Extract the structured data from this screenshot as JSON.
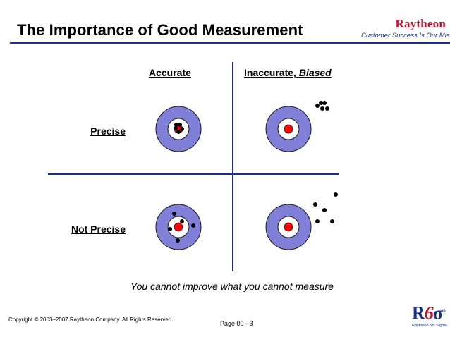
{
  "slide": {
    "title": "The Importance of Good Measurement"
  },
  "brand": {
    "name": "Raytheon",
    "tagline": "Customer Success Is Our Mission"
  },
  "quadrants": {
    "columns": {
      "accurate": "Accurate",
      "inaccurate": "Inaccurate, ",
      "inaccurate_emphasis": "Biased"
    },
    "rows": {
      "precise": "Precise",
      "not_precise": "Not Precise"
    }
  },
  "caption": "You cannot improve what you cannot measure",
  "footer": {
    "copyright": "Copyright © 2003–2007 Raytheon Company. All Rights Reserved.",
    "page": "Page 00 - 3"
  },
  "logo": {
    "mark_letter": "R",
    "mark_digit": "6",
    "mark_sigma": "σ",
    "registered": "®",
    "label": "Raytheon Six Sigma"
  },
  "colors": {
    "title_rule": "#1a2f8c",
    "target_ring": "#8080d8",
    "target_outline": "#1a1a1a",
    "bullseye": "#ff0000",
    "shot": "#000000",
    "brand_red": "#c8102e",
    "axis": "#1a2f8c"
  }
}
